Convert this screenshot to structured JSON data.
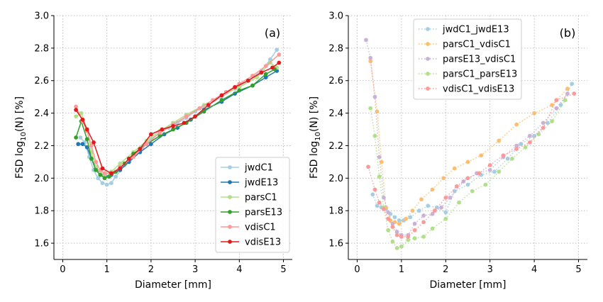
{
  "chart_data": [
    {
      "type": "line",
      "panel_label": "(a)",
      "xlabel": "Diameter [mm]",
      "ylabel_main": "FSD log",
      "ylabel_sub": "10",
      "ylabel_end": "(N) [%]",
      "xlim": [
        -0.2,
        5.2
      ],
      "ylim": [
        1.5,
        3.0
      ],
      "xticks": [
        0,
        1,
        2,
        3,
        4,
        5
      ],
      "yticks": [
        1.6,
        1.8,
        2.0,
        2.2,
        2.4,
        2.6,
        2.8,
        3.0
      ],
      "grid": true,
      "legend_position": "lower-right",
      "series": [
        {
          "name": "jwdC1",
          "color": "#a6cee3",
          "style": "solid",
          "x": [
            0.4,
            0.5,
            0.6,
            0.7,
            0.8,
            0.9,
            1.0,
            1.1,
            1.2,
            1.4,
            1.6,
            1.8,
            2.0,
            2.2,
            2.4,
            2.6,
            2.8,
            3.0,
            3.3,
            3.6,
            3.9,
            4.2,
            4.5,
            4.7,
            4.85
          ],
          "y": [
            2.25,
            2.22,
            2.13,
            2.05,
            2.0,
            1.97,
            1.96,
            1.97,
            2.01,
            2.08,
            2.14,
            2.19,
            2.24,
            2.28,
            2.31,
            2.34,
            2.37,
            2.41,
            2.45,
            2.5,
            2.55,
            2.6,
            2.66,
            2.73,
            2.79
          ]
        },
        {
          "name": "jwdE13",
          "color": "#1f78b4",
          "style": "solid",
          "x": [
            0.35,
            0.45,
            0.55,
            0.65,
            0.75,
            0.85,
            0.95,
            1.1,
            1.3,
            1.5,
            1.75,
            2.0,
            2.3,
            2.6,
            2.9,
            3.2,
            3.6,
            3.9,
            4.3,
            4.6,
            4.85
          ],
          "y": [
            2.21,
            2.21,
            2.19,
            2.12,
            2.06,
            2.03,
            2.01,
            2.02,
            2.05,
            2.1,
            2.16,
            2.21,
            2.27,
            2.31,
            2.36,
            2.42,
            2.47,
            2.52,
            2.57,
            2.62,
            2.66
          ]
        },
        {
          "name": "parsC1",
          "color": "#b2df8a",
          "style": "solid",
          "x": [
            0.3,
            0.42,
            0.55,
            0.65,
            0.75,
            0.85,
            0.95,
            1.1,
            1.3,
            1.6,
            1.9,
            2.2,
            2.5,
            2.8,
            3.2,
            3.6,
            4.0,
            4.4,
            4.7,
            4.85
          ],
          "y": [
            2.38,
            2.4,
            2.3,
            2.16,
            2.07,
            2.03,
            2.02,
            2.04,
            2.09,
            2.16,
            2.23,
            2.29,
            2.34,
            2.39,
            2.45,
            2.51,
            2.56,
            2.62,
            2.71,
            2.68
          ]
        },
        {
          "name": "parsE13",
          "color": "#33a02c",
          "style": "solid",
          "x": [
            0.3,
            0.42,
            0.55,
            0.65,
            0.75,
            0.85,
            0.95,
            1.05,
            1.2,
            1.4,
            1.6,
            1.9,
            2.2,
            2.5,
            2.8,
            3.2,
            3.6,
            4.0,
            4.3,
            4.6,
            4.8
          ],
          "y": [
            2.25,
            2.35,
            2.24,
            2.12,
            2.05,
            2.02,
            2.0,
            2.01,
            2.04,
            2.09,
            2.15,
            2.21,
            2.26,
            2.3,
            2.34,
            2.41,
            2.48,
            2.54,
            2.57,
            2.64,
            2.67
          ]
        },
        {
          "name": "vdisC1",
          "color": "#fb9a99",
          "style": "solid",
          "x": [
            0.3,
            0.45,
            0.55,
            0.65,
            0.75,
            0.85,
            0.95,
            1.1,
            1.3,
            1.6,
            1.9,
            2.2,
            2.5,
            2.8,
            3.1,
            3.4,
            3.7,
            4.0,
            4.3,
            4.6,
            4.9
          ],
          "y": [
            2.44,
            2.35,
            2.29,
            2.2,
            2.1,
            2.05,
            2.03,
            2.03,
            2.07,
            2.13,
            2.21,
            2.28,
            2.33,
            2.38,
            2.43,
            2.48,
            2.53,
            2.58,
            2.63,
            2.69,
            2.76
          ]
        },
        {
          "name": "vdisE13",
          "color": "#e31a1c",
          "style": "solid",
          "x": [
            0.3,
            0.45,
            0.55,
            0.7,
            0.9,
            1.1,
            1.3,
            1.5,
            1.75,
            2.0,
            2.25,
            2.5,
            2.75,
            3.0,
            3.3,
            3.6,
            3.9,
            4.2,
            4.5,
            4.75,
            4.9
          ],
          "y": [
            2.42,
            2.36,
            2.3,
            2.22,
            2.06,
            2.03,
            2.06,
            2.12,
            2.18,
            2.27,
            2.3,
            2.32,
            2.34,
            2.38,
            2.45,
            2.51,
            2.56,
            2.6,
            2.65,
            2.68,
            2.71
          ]
        }
      ]
    },
    {
      "type": "line",
      "panel_label": "(b)",
      "xlabel": "Diameter [mm]",
      "ylabel_main": "FSD log",
      "ylabel_sub": "10",
      "ylabel_end": "(N) [%]",
      "xlim": [
        -0.2,
        5.2
      ],
      "ylim": [
        1.5,
        3.0
      ],
      "xticks": [
        0,
        1,
        2,
        3,
        4,
        5
      ],
      "yticks": [
        1.6,
        1.8,
        2.0,
        2.2,
        2.4,
        2.6,
        2.8,
        3.0
      ],
      "grid": true,
      "legend_position": "top-center",
      "series": [
        {
          "name": "jwdC1_jwdE13",
          "color": "#a6cee3",
          "style": "dotted",
          "x": [
            0.35,
            0.45,
            0.55,
            0.65,
            0.75,
            0.85,
            0.95,
            1.05,
            1.2,
            1.4,
            1.6,
            1.8,
            2.0,
            2.2,
            2.5,
            2.8,
            3.1,
            3.4,
            3.7,
            4.0,
            4.3,
            4.6,
            4.85
          ],
          "y": [
            1.9,
            1.83,
            1.82,
            1.81,
            1.78,
            1.76,
            1.74,
            1.74,
            1.76,
            1.8,
            1.83,
            1.82,
            1.79,
            1.92,
            1.96,
            2.02,
            2.04,
            2.12,
            2.21,
            2.26,
            2.34,
            2.45,
            2.58
          ]
        },
        {
          "name": "parsC1_vdisC1",
          "color": "#fdbf6f",
          "style": "dotted",
          "x": [
            0.3,
            0.45,
            0.55,
            0.65,
            0.75,
            0.85,
            0.95,
            1.1,
            1.25,
            1.45,
            1.7,
            1.95,
            2.2,
            2.5,
            2.8,
            3.2,
            3.6,
            4.0,
            4.4,
            4.75
          ],
          "y": [
            2.72,
            2.41,
            2.1,
            1.82,
            1.74,
            1.73,
            1.72,
            1.75,
            1.8,
            1.87,
            1.93,
            2.0,
            2.06,
            2.1,
            2.14,
            2.23,
            2.33,
            2.4,
            2.45,
            2.55
          ]
        },
        {
          "name": "parsE13_vdisC1",
          "color": "#cab2d6",
          "style": "dotted",
          "x": [
            0.2,
            0.3,
            0.4,
            0.5,
            0.6,
            0.7,
            0.8,
            0.9,
            1.0,
            1.15,
            1.3,
            1.5,
            1.7,
            1.9,
            2.1,
            2.4,
            2.7,
            3.0,
            3.3,
            3.6,
            3.9,
            4.2,
            4.5,
            4.75
          ],
          "y": [
            2.85,
            2.74,
            2.5,
            2.13,
            1.88,
            1.79,
            1.72,
            1.67,
            1.65,
            1.65,
            1.72,
            1.77,
            1.78,
            1.82,
            1.88,
            1.98,
            2.03,
            2.05,
            2.13,
            2.2,
            2.26,
            2.34,
            2.43,
            2.52
          ]
        },
        {
          "name": "parsC1_parsE13",
          "color": "#b2df8a",
          "style": "dotted",
          "x": [
            0.3,
            0.4,
            0.5,
            0.6,
            0.7,
            0.8,
            0.9,
            1.0,
            1.15,
            1.3,
            1.5,
            1.7,
            2.0,
            2.3,
            2.6,
            2.9,
            3.2,
            3.5,
            3.8,
            4.1,
            4.4,
            4.7
          ],
          "y": [
            2.43,
            2.26,
            2.01,
            1.82,
            1.68,
            1.61,
            1.57,
            1.58,
            1.62,
            1.63,
            1.64,
            1.69,
            1.75,
            1.85,
            1.92,
            1.96,
            2.04,
            2.12,
            2.19,
            2.27,
            2.35,
            2.48
          ]
        },
        {
          "name": "vdisC1_vdisE13",
          "color": "#fb9a99",
          "style": "dotted",
          "x": [
            0.25,
            0.4,
            0.5,
            0.6,
            0.7,
            0.8,
            0.9,
            1.0,
            1.15,
            1.3,
            1.5,
            1.75,
            2.0,
            2.25,
            2.5,
            2.75,
            3.0,
            3.3,
            3.6,
            3.9,
            4.2,
            4.5,
            4.9
          ],
          "y": [
            2.07,
            1.93,
            1.85,
            1.81,
            1.75,
            1.7,
            1.65,
            1.64,
            1.64,
            1.68,
            1.73,
            1.8,
            1.88,
            1.95,
            2.0,
            2.03,
            2.08,
            2.14,
            2.18,
            2.22,
            2.31,
            2.48,
            2.52
          ]
        }
      ]
    }
  ]
}
